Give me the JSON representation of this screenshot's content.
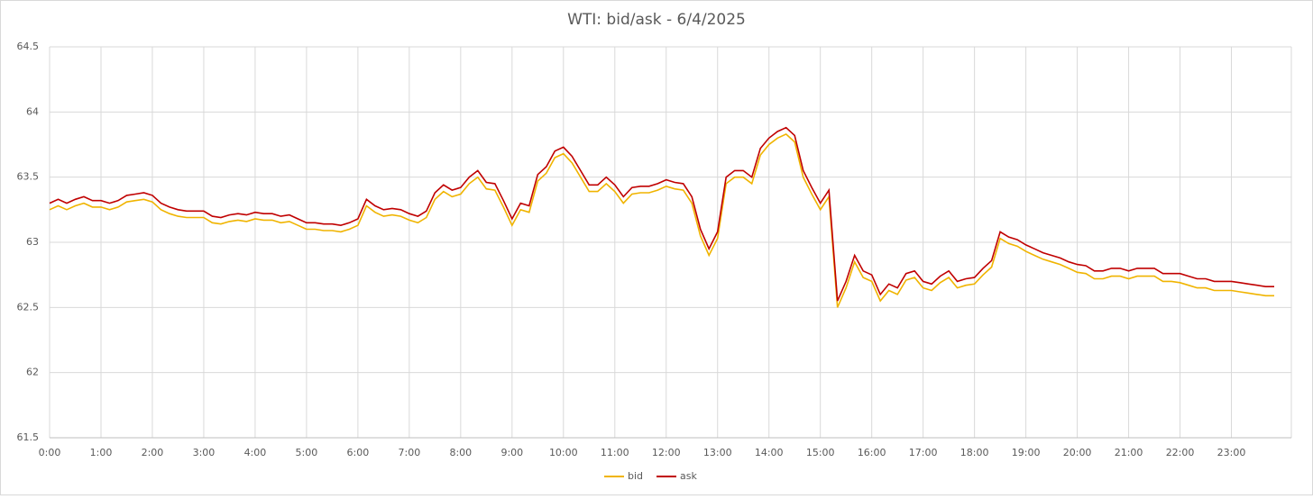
{
  "chart_data": {
    "type": "line",
    "title": "WTI: bid/ask - 6/4/2025",
    "x": [
      0,
      10,
      20,
      30,
      40,
      50,
      60,
      70,
      80,
      90,
      100,
      110,
      120,
      130,
      140,
      150,
      160,
      170,
      180,
      190,
      200,
      210,
      220,
      230,
      240,
      250,
      260,
      270,
      280,
      290,
      300,
      310,
      320,
      330,
      340,
      350,
      360,
      370,
      380,
      390,
      400,
      410,
      420,
      430,
      440,
      450,
      460,
      470,
      480,
      490,
      500,
      510,
      520,
      530,
      540,
      550,
      560,
      570,
      580,
      590,
      600,
      610,
      620,
      630,
      640,
      650,
      660,
      670,
      680,
      690,
      700,
      710,
      720,
      730,
      740,
      750,
      760,
      770,
      780,
      790,
      800,
      810,
      820,
      830,
      840,
      850,
      860,
      870,
      880,
      890,
      900,
      910,
      920,
      930,
      940,
      950,
      960,
      970,
      980,
      990,
      1000,
      1010,
      1020,
      1030,
      1040,
      1050,
      1060,
      1070,
      1080,
      1090,
      1100,
      1110,
      1120,
      1130,
      1140,
      1150,
      1160,
      1170,
      1180,
      1190,
      1200,
      1210,
      1220,
      1230,
      1240,
      1250,
      1260,
      1270,
      1280,
      1290,
      1300,
      1310,
      1320,
      1330,
      1340,
      1350,
      1360,
      1370,
      1380,
      1390,
      1400,
      1410,
      1420,
      1430
    ],
    "series": [
      {
        "name": "bid",
        "color": "#f0b400",
        "values": [
          63.25,
          63.28,
          63.25,
          63.28,
          63.3,
          63.27,
          63.27,
          63.25,
          63.27,
          63.31,
          63.32,
          63.33,
          63.31,
          63.25,
          63.22,
          63.2,
          63.19,
          63.19,
          63.19,
          63.15,
          63.14,
          63.16,
          63.17,
          63.16,
          63.18,
          63.17,
          63.17,
          63.15,
          63.16,
          63.13,
          63.1,
          63.1,
          63.09,
          63.09,
          63.08,
          63.1,
          63.13,
          63.28,
          63.23,
          63.2,
          63.21,
          63.2,
          63.17,
          63.15,
          63.19,
          63.33,
          63.39,
          63.35,
          63.37,
          63.45,
          63.5,
          63.41,
          63.4,
          63.27,
          63.13,
          63.25,
          63.23,
          63.47,
          63.53,
          63.65,
          63.68,
          63.61,
          63.5,
          63.39,
          63.39,
          63.45,
          63.39,
          63.3,
          63.37,
          63.38,
          63.38,
          63.4,
          63.43,
          63.41,
          63.4,
          63.3,
          63.05,
          62.9,
          63.03,
          63.45,
          63.5,
          63.5,
          63.45,
          63.67,
          63.75,
          63.8,
          63.83,
          63.77,
          63.5,
          63.37,
          63.25,
          63.35,
          62.5,
          62.65,
          62.85,
          62.73,
          62.7,
          62.55,
          62.63,
          62.6,
          62.71,
          62.73,
          62.65,
          62.63,
          62.69,
          62.73,
          62.65,
          62.67,
          62.68,
          62.75,
          62.81,
          63.03,
          62.99,
          62.97,
          62.93,
          62.9,
          62.87,
          62.85,
          62.83,
          62.8,
          62.77,
          62.76,
          62.72,
          62.72,
          62.74,
          62.74,
          62.72,
          62.74,
          62.74,
          62.74,
          62.7,
          62.7,
          62.69,
          62.67,
          62.65,
          62.65,
          62.63,
          62.63,
          62.63,
          62.62,
          62.61,
          62.6,
          62.59,
          62.59
        ]
      },
      {
        "name": "ask",
        "color": "#c00000",
        "values": [
          63.3,
          63.33,
          63.3,
          63.33,
          63.35,
          63.32,
          63.32,
          63.3,
          63.32,
          63.36,
          63.37,
          63.38,
          63.36,
          63.3,
          63.27,
          63.25,
          63.24,
          63.24,
          63.24,
          63.2,
          63.19,
          63.21,
          63.22,
          63.21,
          63.23,
          63.22,
          63.22,
          63.2,
          63.21,
          63.18,
          63.15,
          63.15,
          63.14,
          63.14,
          63.13,
          63.15,
          63.18,
          63.33,
          63.28,
          63.25,
          63.26,
          63.25,
          63.22,
          63.2,
          63.24,
          63.38,
          63.44,
          63.4,
          63.42,
          63.5,
          63.55,
          63.46,
          63.45,
          63.32,
          63.18,
          63.3,
          63.28,
          63.52,
          63.58,
          63.7,
          63.73,
          63.66,
          63.55,
          63.44,
          63.44,
          63.5,
          63.44,
          63.35,
          63.42,
          63.43,
          63.43,
          63.45,
          63.48,
          63.46,
          63.45,
          63.35,
          63.1,
          62.95,
          63.08,
          63.5,
          63.55,
          63.55,
          63.5,
          63.72,
          63.8,
          63.85,
          63.88,
          63.82,
          63.55,
          63.42,
          63.3,
          63.4,
          62.55,
          62.7,
          62.9,
          62.78,
          62.75,
          62.6,
          62.68,
          62.65,
          62.76,
          62.78,
          62.7,
          62.68,
          62.74,
          62.78,
          62.7,
          62.72,
          62.73,
          62.8,
          62.86,
          63.08,
          63.04,
          63.02,
          62.98,
          62.95,
          62.92,
          62.9,
          62.88,
          62.85,
          62.83,
          62.82,
          62.78,
          62.78,
          62.8,
          62.8,
          62.78,
          62.8,
          62.8,
          62.8,
          62.76,
          62.76,
          62.76,
          62.74,
          62.72,
          62.72,
          62.7,
          62.7,
          62.7,
          62.69,
          62.68,
          62.67,
          62.66,
          62.66
        ]
      }
    ],
    "xlim": [
      0,
      1450
    ],
    "xticks": [
      {
        "value": 0,
        "label": "0:00"
      },
      {
        "value": 60,
        "label": "1:00"
      },
      {
        "value": 120,
        "label": "2:00"
      },
      {
        "value": 180,
        "label": "3:00"
      },
      {
        "value": 240,
        "label": "4:00"
      },
      {
        "value": 300,
        "label": "5:00"
      },
      {
        "value": 360,
        "label": "6:00"
      },
      {
        "value": 420,
        "label": "7:00"
      },
      {
        "value": 480,
        "label": "8:00"
      },
      {
        "value": 540,
        "label": "9:00"
      },
      {
        "value": 600,
        "label": "10:00"
      },
      {
        "value": 660,
        "label": "11:00"
      },
      {
        "value": 720,
        "label": "12:00"
      },
      {
        "value": 780,
        "label": "13:00"
      },
      {
        "value": 840,
        "label": "14:00"
      },
      {
        "value": 900,
        "label": "15:00"
      },
      {
        "value": 960,
        "label": "16:00"
      },
      {
        "value": 1020,
        "label": "17:00"
      },
      {
        "value": 1080,
        "label": "18:00"
      },
      {
        "value": 1140,
        "label": "19:00"
      },
      {
        "value": 1200,
        "label": "20:00"
      },
      {
        "value": 1260,
        "label": "21:00"
      },
      {
        "value": 1320,
        "label": "22:00"
      },
      {
        "value": 1380,
        "label": "23:00"
      }
    ],
    "ylim": [
      61.5,
      64.5
    ],
    "yticks": [
      61.5,
      62,
      62.5,
      63,
      63.5,
      64,
      64.5
    ],
    "grid": true,
    "legend": "bottom"
  }
}
